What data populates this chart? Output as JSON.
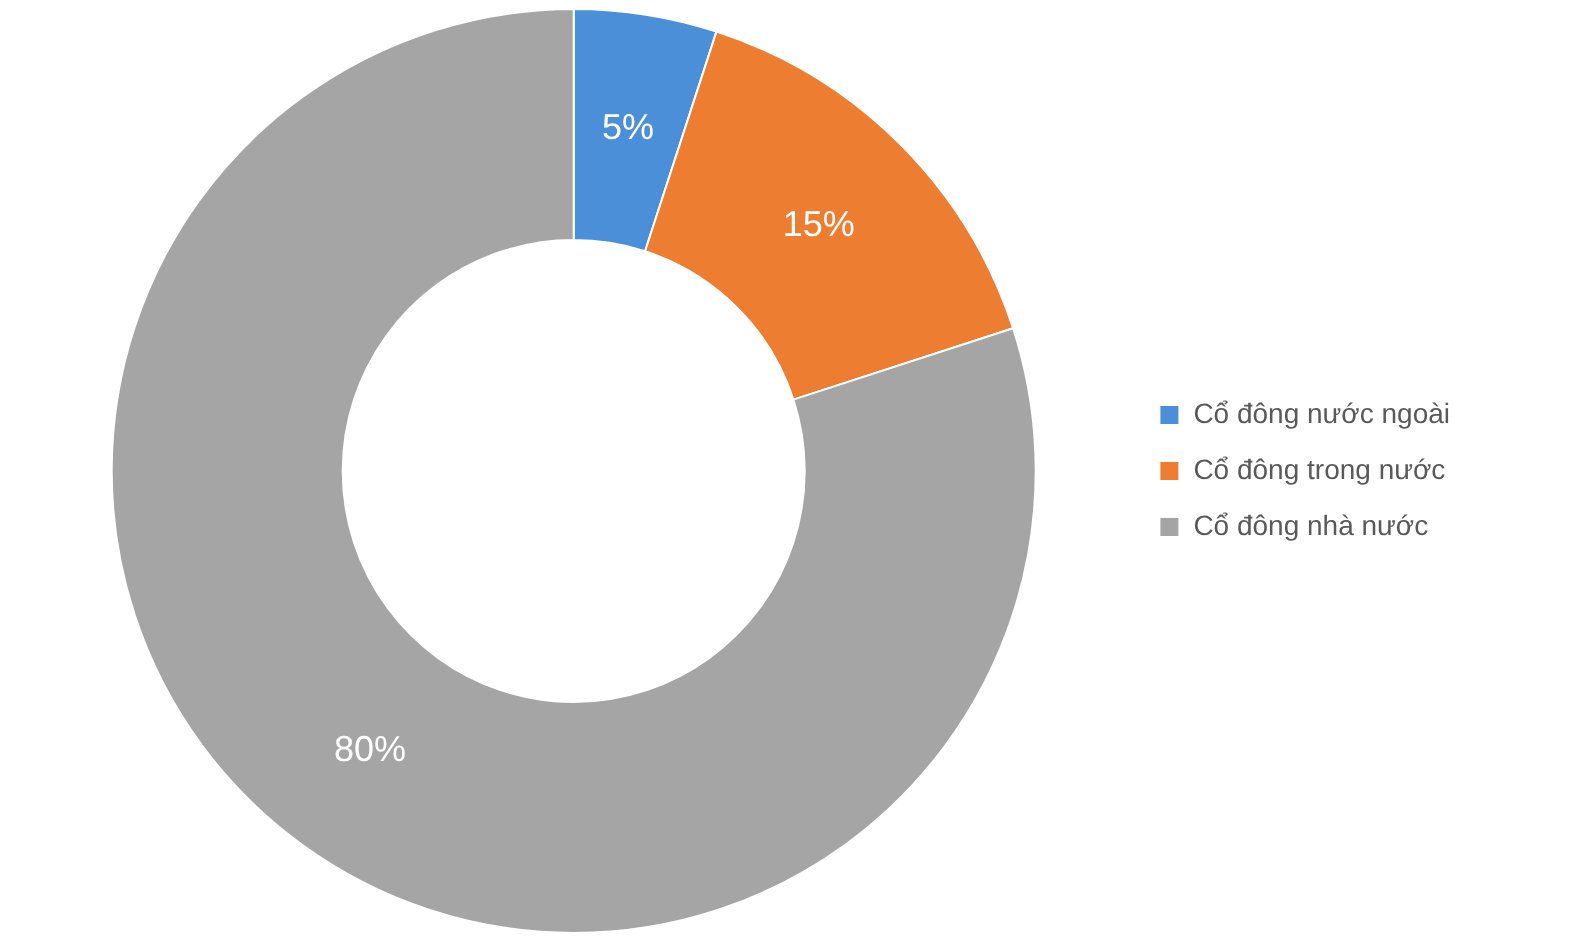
{
  "chart_data": {
    "type": "donut",
    "categories": [
      "Cổ đông nước ngoài",
      "Cổ đông trong nước",
      "Cổ đông nhà nước"
    ],
    "values": [
      5,
      15,
      80
    ],
    "colors": [
      "#4a8fd8",
      "#ed7d31",
      "#a5a5a5"
    ],
    "value_labels": [
      "5%",
      "15%",
      "80%"
    ],
    "legend": "right"
  }
}
